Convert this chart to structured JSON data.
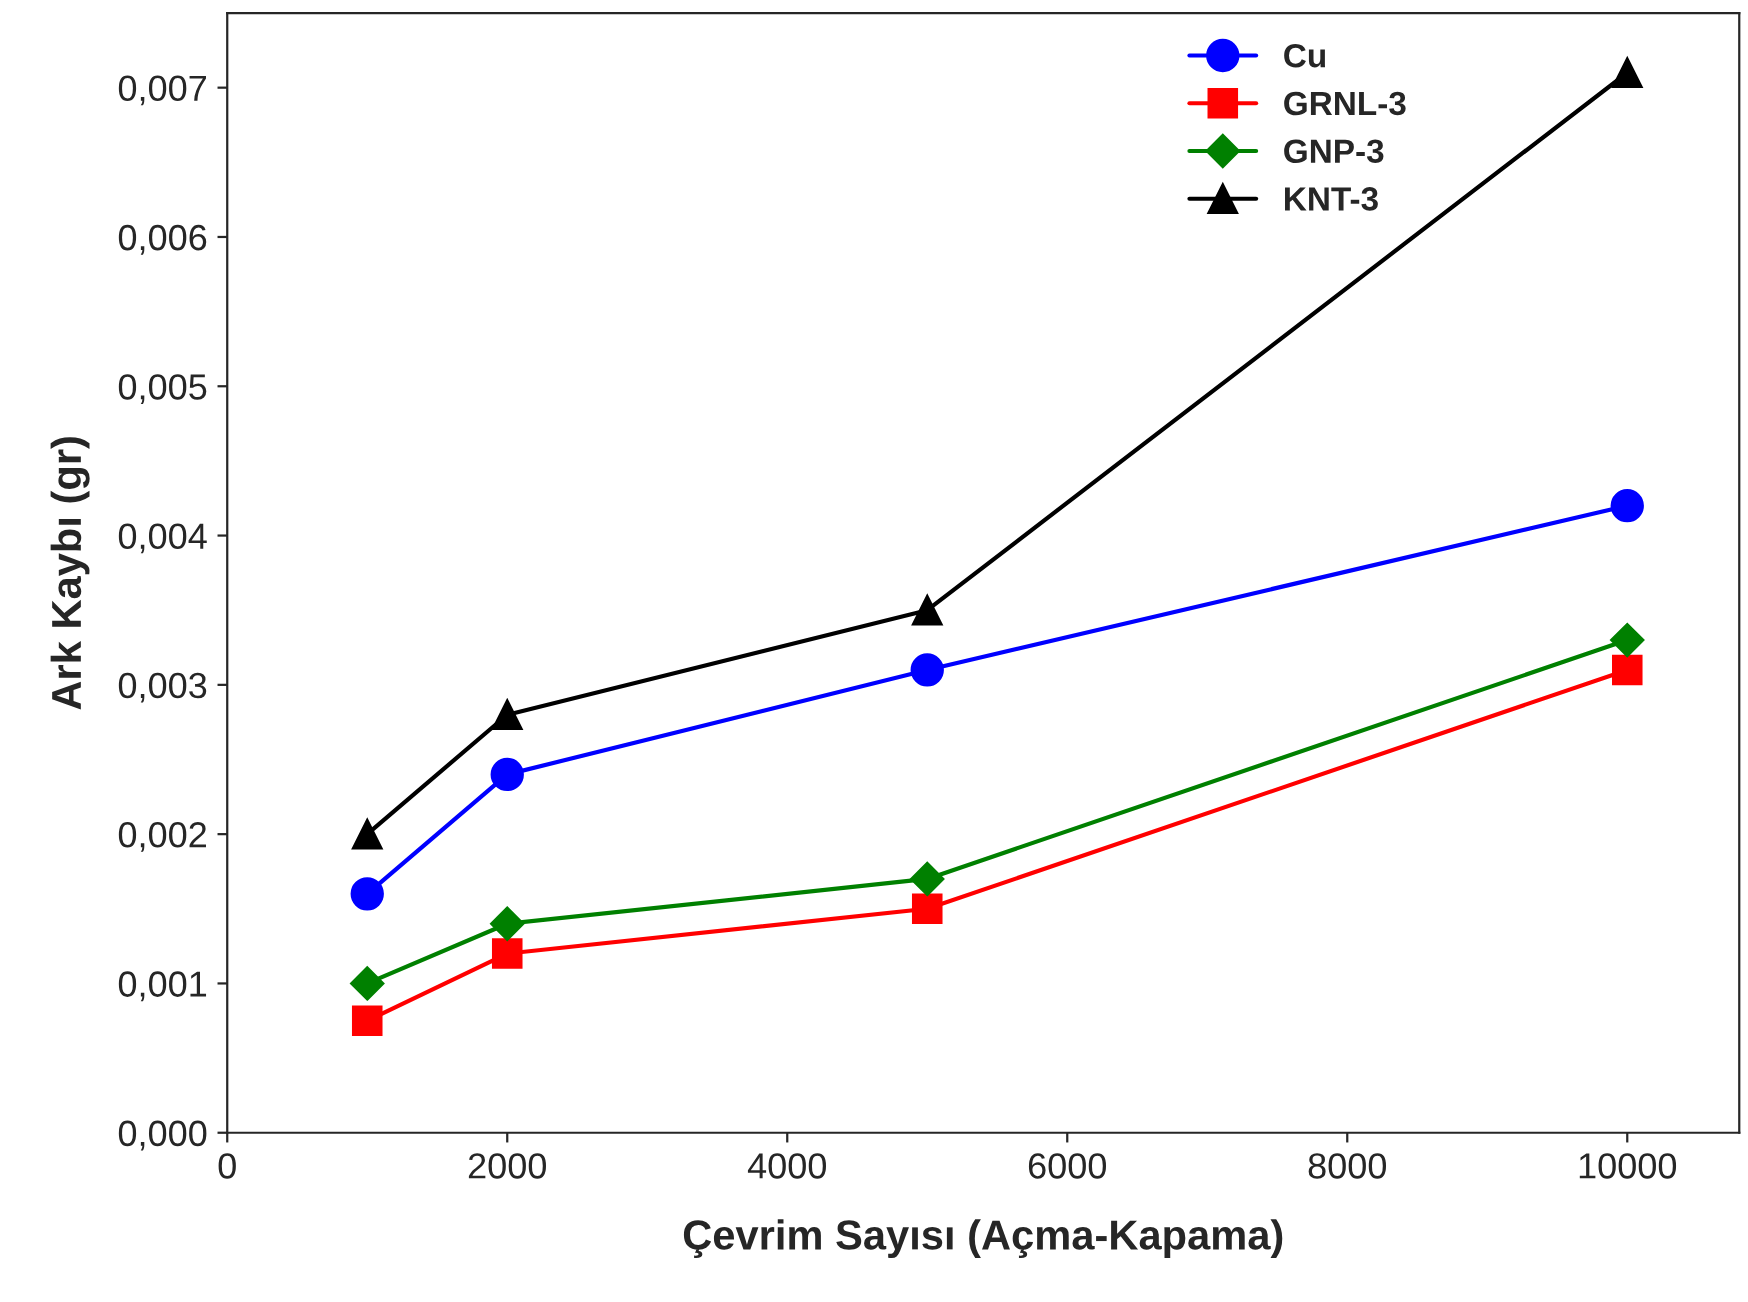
{
  "chart_data": {
    "type": "line",
    "xlabel": "Çevrim Sayısı (Açma-Kapama)",
    "ylabel": "Ark Kaybı (gr)",
    "x": [
      1000,
      2000,
      5000,
      10000
    ],
    "series": [
      {
        "name": "Cu",
        "color": "#0000ff",
        "marker": "circle",
        "values": [
          0.0016,
          0.0024,
          0.0031,
          0.0042
        ]
      },
      {
        "name": "GRNL-3",
        "color": "#ff0000",
        "marker": "square",
        "values": [
          0.00075,
          0.0012,
          0.0015,
          0.0031
        ]
      },
      {
        "name": "GNP-3",
        "color": "#008000",
        "marker": "diamond",
        "values": [
          0.001,
          0.0014,
          0.0017,
          0.0033
        ]
      },
      {
        "name": "KNT-3",
        "color": "#000000",
        "marker": "triangle",
        "values": [
          0.002,
          0.0028,
          0.0035,
          0.0071
        ]
      }
    ],
    "xlim": [
      0,
      10800
    ],
    "xticks": [
      0,
      2000,
      4000,
      6000,
      8000,
      10000
    ],
    "ylim": [
      0,
      0.0075
    ],
    "yticks": [
      {
        "value": 0,
        "label": "0,000"
      },
      {
        "value": 0.001,
        "label": "0,001"
      },
      {
        "value": 0.002,
        "label": "0,002"
      },
      {
        "value": 0.003,
        "label": "0,003"
      },
      {
        "value": 0.004,
        "label": "0,004"
      },
      {
        "value": 0.005,
        "label": "0,005"
      },
      {
        "value": 0.006,
        "label": "0,006"
      },
      {
        "value": 0.007,
        "label": "0,007"
      }
    ],
    "grid": false,
    "legend": "top right",
    "line_style": "solid"
  }
}
